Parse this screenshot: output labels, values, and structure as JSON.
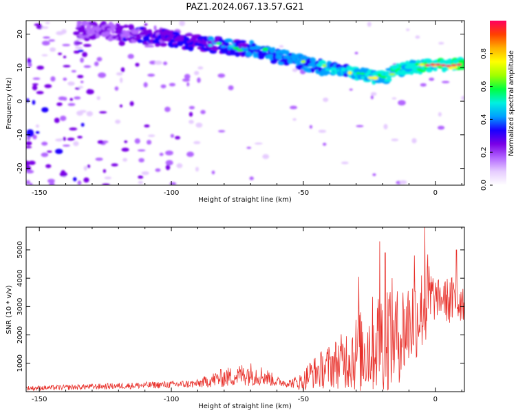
{
  "figure": {
    "title": "PAZ1.2024.067.13.57.G21"
  },
  "chart_data": [
    {
      "type": "heatmap",
      "title": "",
      "xlabel": "Height of straight line (km)",
      "ylabel": "Frequency (Hz)",
      "xlim": [
        -155,
        11
      ],
      "ylim": [
        -25,
        24
      ],
      "xticks": [
        -150,
        -100,
        -50,
        0
      ],
      "yticks": [
        -20,
        -10,
        0,
        10,
        20
      ],
      "colorbar": {
        "label": "Normalized spectral amplitude",
        "range": [
          0,
          1
        ],
        "ticks": [
          0.0,
          0.2,
          0.4,
          0.6,
          0.8
        ],
        "colormap": [
          "#ffffff",
          "#e6ccff",
          "#b366ff",
          "#7a00e6",
          "#1a00ff",
          "#00a0ff",
          "#00f0e0",
          "#00ff40",
          "#a0ff00",
          "#ffff00",
          "#ffb000",
          "#ff4000",
          "#ff0060"
        ]
      },
      "ridge": {
        "description_points_x": [
          -125,
          -110,
          -95,
          -85,
          -75,
          -65,
          -60,
          -55,
          -50,
          -45,
          -40,
          -35,
          -30,
          -25,
          -20,
          -15,
          -10,
          -5,
          0,
          5,
          10
        ],
        "description_points_y": [
          21,
          19.5,
          18,
          17,
          16,
          15,
          13.5,
          12.5,
          11.5,
          10.5,
          9.5,
          9,
          8.5,
          7.5,
          7,
          9,
          10,
          10.5,
          11,
          10.5,
          11
        ]
      },
      "grid": false
    },
    {
      "type": "line",
      "title": "",
      "xlabel": "Height of straight line (km)",
      "ylabel": "SNR (10 * v/v)",
      "xlim": [
        -155,
        11
      ],
      "ylim": [
        0,
        5800
      ],
      "xticks": [
        -150,
        -100,
        -50,
        0
      ],
      "yticks": [
        1000,
        2000,
        3000,
        4000,
        5000
      ],
      "line_color": "#e8302a",
      "envelope": {
        "x": [
          -155,
          -140,
          -120,
          -100,
          -90,
          -85,
          -80,
          -75,
          -72,
          -68,
          -65,
          -60,
          -55,
          -50,
          -48,
          -45,
          -40,
          -35,
          -32,
          -28,
          -25,
          -20,
          -17,
          -15,
          -12,
          -10,
          -8,
          -5,
          -3,
          0,
          3,
          5,
          8,
          10,
          11
        ],
        "mean": [
          120,
          150,
          200,
          250,
          280,
          400,
          500,
          550,
          650,
          600,
          550,
          350,
          300,
          350,
          600,
          700,
          900,
          1100,
          1300,
          1400,
          1600,
          1900,
          2100,
          1900,
          2200,
          2400,
          2600,
          2900,
          3200,
          3300,
          3300,
          3200,
          3100,
          3300,
          3000
        ],
        "amp": [
          80,
          90,
          110,
          130,
          150,
          250,
          350,
          350,
          450,
          400,
          350,
          180,
          150,
          350,
          500,
          600,
          800,
          1000,
          1300,
          1500,
          1700,
          1900,
          2100,
          1700,
          1800,
          1700,
          1600,
          1500,
          1800,
          700,
          600,
          900,
          1000,
          800,
          700
        ]
      },
      "peaks": [
        {
          "x": -29,
          "y": 4050
        },
        {
          "x": -21,
          "y": 5300
        },
        {
          "x": -19,
          "y": 4900
        },
        {
          "x": -8,
          "y": 4800
        },
        {
          "x": -4,
          "y": 5800
        },
        {
          "x": 8,
          "y": 5000
        }
      ],
      "grid": false
    }
  ]
}
